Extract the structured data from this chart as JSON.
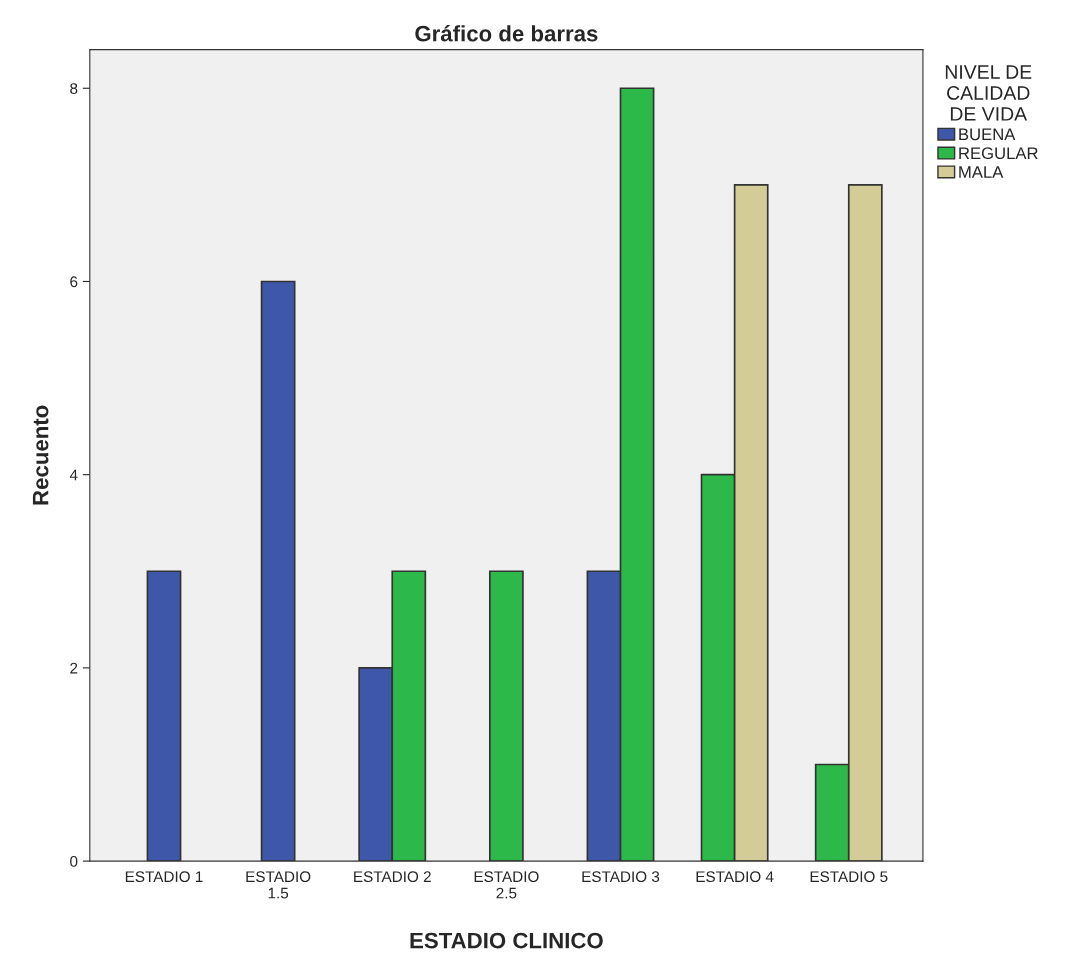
{
  "chart_data": {
    "type": "bar",
    "title": "Gráfico de barras",
    "xlabel": "ESTADIO CLINICO",
    "ylabel": "Recuento",
    "legend_title": "NIVEL DE\nCALIDAD\nDE VIDA",
    "categories": [
      "ESTADIO 1",
      "ESTADIO\n1.5",
      "ESTADIO 2",
      "ESTADIO\n2.5",
      "ESTADIO 3",
      "ESTADIO 4",
      "ESTADIO 5"
    ],
    "series": [
      {
        "name": "BUENA",
        "color": "#3f57a8",
        "values": [
          3,
          6,
          2,
          null,
          3,
          null,
          null
        ]
      },
      {
        "name": "REGULAR",
        "color": "#2db84a",
        "values": [
          null,
          null,
          3,
          3,
          8,
          4,
          1
        ]
      },
      {
        "name": "MALA",
        "color": "#d4cc96",
        "values": [
          null,
          null,
          null,
          null,
          null,
          7,
          7
        ]
      }
    ],
    "ylim": [
      0,
      8.4
    ],
    "yticks": [
      0,
      2,
      4,
      6,
      8
    ],
    "grid": false,
    "legend": "top right"
  }
}
